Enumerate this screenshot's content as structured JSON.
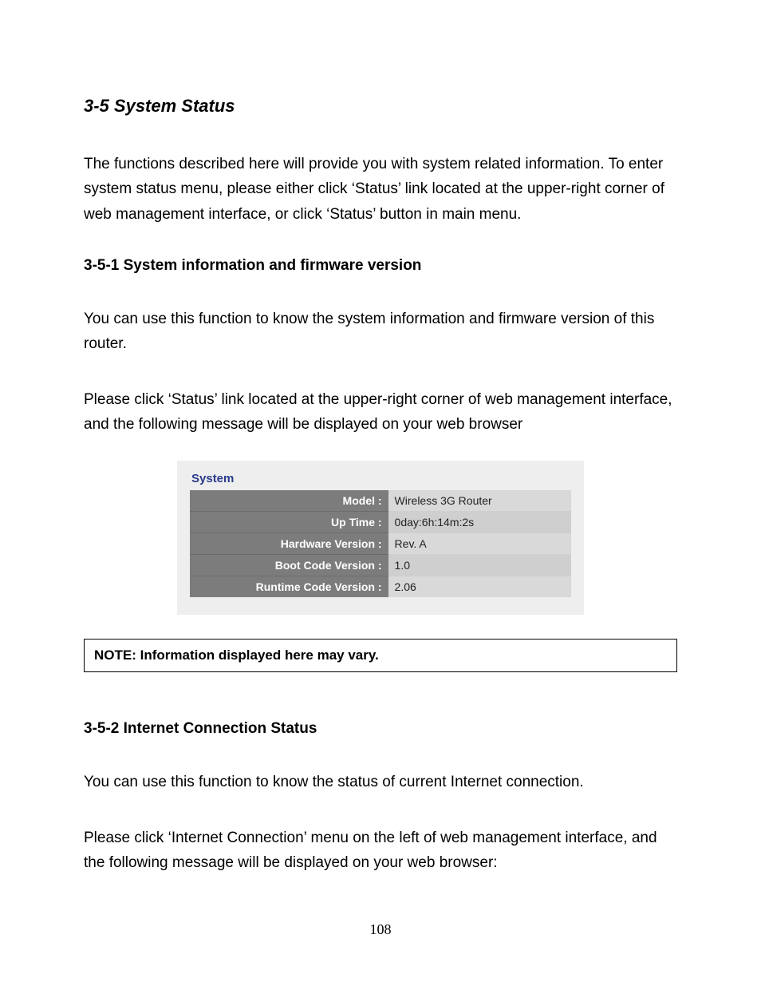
{
  "heading_main": "3-5 System Status",
  "para_intro": "The functions described here will provide you with system related information. To enter system status menu, please either click ‘Status’ link located at the upper-right corner of web management interface, or click ‘Status’ button in main menu.",
  "section1": {
    "heading": "3-5-1 System information and firmware version",
    "para1": "You can use this function to know the system information and firmware version of this router.",
    "para2": "Please click ‘Status’ link located at the upper-right corner of web management interface, and the following message will be displayed on your web browser"
  },
  "panel": {
    "title": "System",
    "background_color": "#eeeeee",
    "title_color": "#2b3a8a",
    "label_bg": "#7c7c7c",
    "label_fg": "#ffffff",
    "value_bg_even": "#d9d9d9",
    "value_bg_odd": "#cfcfcf",
    "rows": [
      {
        "label": "Model :",
        "value": "Wireless 3G Router"
      },
      {
        "label": "Up Time :",
        "value": "0day:6h:14m:2s"
      },
      {
        "label": "Hardware Version :",
        "value": "Rev. A"
      },
      {
        "label": "Boot Code Version :",
        "value": "1.0"
      },
      {
        "label": "Runtime Code Version :",
        "value": "2.06"
      }
    ]
  },
  "note_text": "NOTE: Information displayed here may vary.",
  "section2": {
    "heading": "3-5-2 Internet Connection Status",
    "para1": "You can use this function to know the status of current Internet connection.",
    "para2": "Please click ‘Internet Connection’ menu on the left of web management interface, and the following message will be displayed on your web browser:"
  },
  "page_number": "108"
}
